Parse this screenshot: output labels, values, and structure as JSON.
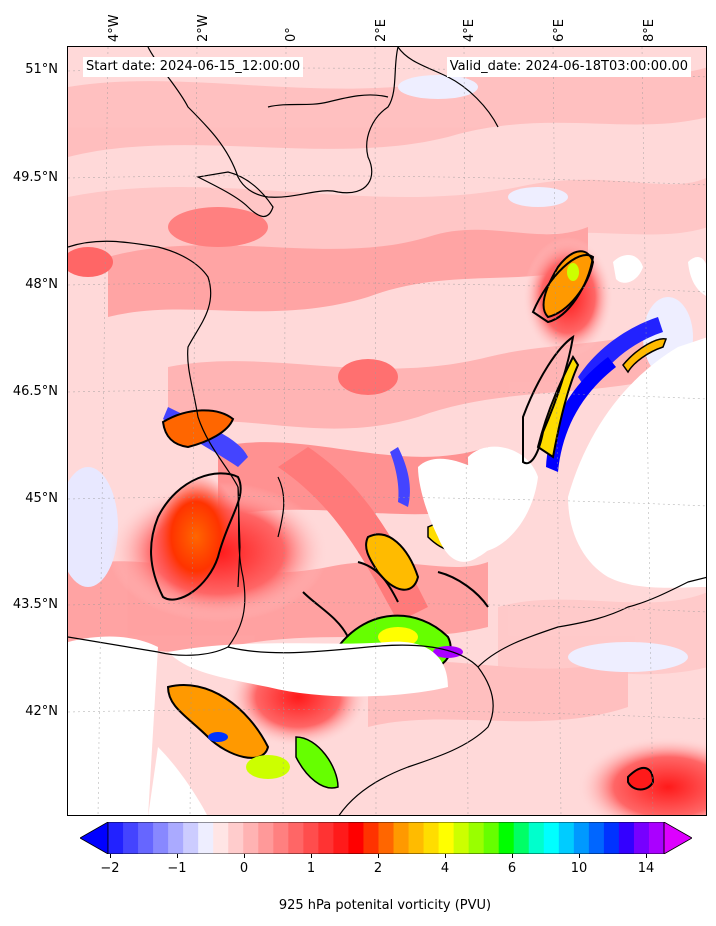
{
  "header": {
    "start_date": "Start date: 2024-06-15_12:00:00",
    "valid_date": "Valid_date: 2024-06-18T03:00:00.00"
  },
  "axes": {
    "longitude_labels": [
      "4°W",
      "2°W",
      "0°",
      "2°E",
      "4°E",
      "6°E",
      "8°E"
    ],
    "latitude_labels": [
      "51°N",
      "49.5°N",
      "48°N",
      "46.5°N",
      "45°N",
      "43.5°N",
      "42°N"
    ],
    "gridlines": true
  },
  "colorbar": {
    "label": "925 hPa potenital vorticity (PVU)",
    "tick_labels": [
      "−2",
      "−1",
      "0",
      "1",
      "2",
      "4",
      "6",
      "10",
      "14"
    ],
    "extend": "both",
    "colors": [
      "#0000ff",
      "#2222ff",
      "#4444ff",
      "#6666ff",
      "#8888ff",
      "#aaaaff",
      "#ccccff",
      "#eeeeff",
      "#ffe5e5",
      "#ffcccc",
      "#ffb3b3",
      "#ff9999",
      "#ff8080",
      "#ff6666",
      "#ff4d4d",
      "#ff3333",
      "#ff1a1a",
      "#ff0000",
      "#ff3300",
      "#ff6600",
      "#ff9900",
      "#ffbb00",
      "#ffdd00",
      "#ffff00",
      "#ccff00",
      "#99ff00",
      "#66ff00",
      "#00ff00",
      "#00ff66",
      "#00ffcc",
      "#00ffff",
      "#00ccff",
      "#0099ff",
      "#0066ff",
      "#0033ff",
      "#3300ff",
      "#7700ff",
      "#aa00ff",
      "#dd00ff"
    ]
  },
  "map": {
    "variable": "925 hPa potential vorticity",
    "region": "France, Bay of Biscay, Pyrenees, western Mediterranean",
    "background_color": "#ffd6d6",
    "contour_color": "#000000",
    "coastline_color": "#000000",
    "missing_data_color": "#ffffff"
  }
}
